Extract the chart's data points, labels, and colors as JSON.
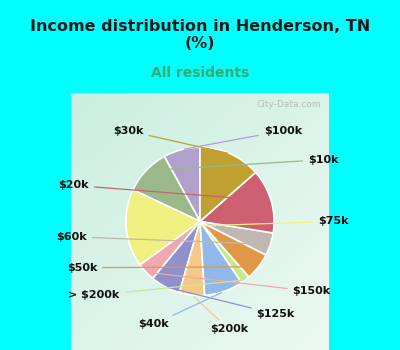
{
  "title": "Income distribution in Henderson, TN\n(%)",
  "subtitle": "All residents",
  "title_color": "#1a1a1a",
  "subtitle_color": "#3aaa6e",
  "bg_top": "#00ffff",
  "bg_chart_tl": "#c8ede0",
  "bg_chart_br": "#f0faf5",
  "labels": [
    "$100k",
    "$10k",
    "$75k",
    "$150k",
    "$125k",
    "$200k",
    "$40k",
    "> $200k",
    "$50k",
    "$60k",
    "$20k",
    "$30k"
  ],
  "values": [
    8.0,
    10.0,
    17.0,
    4.0,
    6.5,
    5.5,
    8.5,
    2.0,
    6.0,
    5.0,
    14.0,
    13.5
  ],
  "colors": [
    "#b0a0cc",
    "#9ab88a",
    "#f0f080",
    "#f0a8b0",
    "#9090cc",
    "#f5c888",
    "#90b8e8",
    "#c8e890",
    "#e09848",
    "#c0b8b0",
    "#cc6070",
    "#bfa030"
  ],
  "line_colors": [
    "#b0a0cc",
    "#9ab88a",
    "#f0f080",
    "#f0a8b0",
    "#9090cc",
    "#f5c888",
    "#90b8e8",
    "#c8e890",
    "#e09848",
    "#c0b8b0",
    "#cc6070",
    "#bfa030"
  ],
  "label_fontsize": 8,
  "startangle": 90,
  "watermark": "City-Data.com"
}
